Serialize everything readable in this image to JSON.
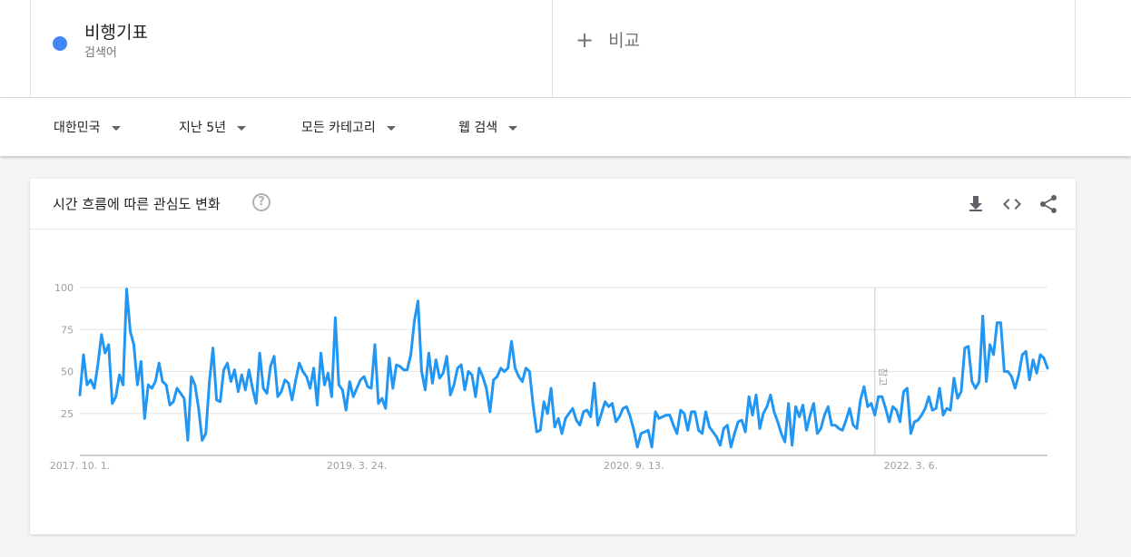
{
  "search_terms": [
    {
      "name": "비행기표",
      "type": "검색어",
      "color": "#4285f4"
    }
  ],
  "compare": {
    "label": "비교",
    "icon": "plus-icon"
  },
  "filters": [
    {
      "label": "대한민국"
    },
    {
      "label": "지난 5년"
    },
    {
      "label": "모든 카테고리"
    },
    {
      "label": "웹 검색"
    }
  ],
  "card": {
    "title": "시간 흐름에 따른 관심도 변화",
    "help_icon": "?",
    "actions": [
      "download-icon",
      "embed-code-icon",
      "share-icon"
    ]
  },
  "chart_data": {
    "type": "line",
    "title": "",
    "xlabel": "",
    "ylabel": "",
    "ylim": [
      0,
      100
    ],
    "yticks": [
      25,
      50,
      75,
      100
    ],
    "grid": true,
    "line_color": "#2196f3",
    "x_tick_labels": [
      {
        "label": "2017. 10. 1.",
        "index": 0
      },
      {
        "label": "2019. 3. 24.",
        "index": 77
      },
      {
        "label": "2020. 9. 13.",
        "index": 154
      },
      {
        "label": "2022. 3. 6.",
        "index": 231
      }
    ],
    "annotation": {
      "label": "참고",
      "index": 221
    },
    "start_week": "2017. 10. 1.",
    "series": [
      {
        "values": [
          36,
          60,
          42,
          45,
          40,
          54,
          72,
          61,
          66,
          31,
          35,
          48,
          42,
          99,
          74,
          66,
          42,
          56,
          22,
          42,
          40,
          44,
          55,
          44,
          42,
          30,
          32,
          40,
          37,
          34,
          9,
          47,
          42,
          28,
          9,
          13,
          44,
          64,
          33,
          32,
          51,
          55,
          44,
          51,
          38,
          48,
          39,
          51,
          40,
          31,
          61,
          40,
          37,
          53,
          59,
          35,
          38,
          45,
          43,
          33,
          45,
          55,
          50,
          47,
          40,
          52,
          30,
          61,
          42,
          49,
          35,
          82,
          42,
          39,
          27,
          44,
          35,
          40,
          45,
          47,
          41,
          40,
          66,
          31,
          34,
          28,
          58,
          40,
          54,
          53,
          51,
          51,
          60,
          80,
          92,
          50,
          39,
          61,
          43,
          57,
          46,
          49,
          59,
          36,
          42,
          52,
          54,
          39,
          50,
          48,
          35,
          52,
          47,
          40,
          26,
          45,
          47,
          52,
          50,
          52,
          68,
          52,
          47,
          44,
          52,
          50,
          30,
          14,
          15,
          32,
          25,
          40,
          17,
          22,
          13,
          22,
          25,
          28,
          21,
          18,
          26,
          27,
          23,
          43,
          18,
          25,
          32,
          29,
          31,
          20,
          23,
          28,
          29,
          23,
          15,
          5,
          13,
          14,
          15,
          5,
          26,
          22,
          23,
          24,
          24,
          18,
          13,
          27,
          25,
          15,
          26,
          26,
          15,
          13,
          26,
          17,
          14,
          11,
          6,
          16,
          18,
          5,
          13,
          20,
          21,
          14,
          35,
          24,
          36,
          16,
          25,
          29,
          36,
          26,
          20,
          13,
          8,
          31,
          6,
          29,
          23,
          30,
          15,
          24,
          31,
          13,
          16,
          24,
          29,
          18,
          18,
          16,
          15,
          21,
          28,
          18,
          16,
          33,
          41,
          29,
          31,
          24,
          35,
          35,
          28,
          20,
          29,
          27,
          20,
          38,
          40,
          13,
          20,
          21,
          24,
          28,
          35,
          27,
          28,
          40,
          24,
          28,
          27,
          46,
          34,
          38,
          64,
          65,
          44,
          40,
          44,
          83,
          44,
          66,
          60,
          79,
          79,
          50,
          50,
          47,
          40,
          48,
          60,
          62,
          45,
          57,
          49,
          60,
          58,
          52
        ]
      }
    ]
  }
}
